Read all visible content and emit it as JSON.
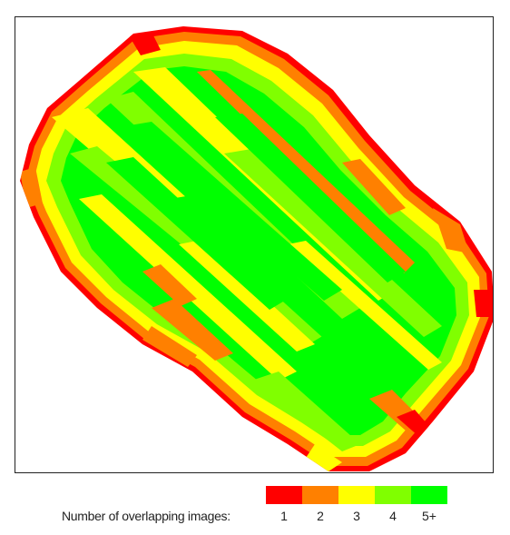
{
  "map": {
    "colors": {
      "c1": "#ff0000",
      "c2": "#ff8000",
      "c3": "#ffff00",
      "c4": "#80ff00",
      "c5": "#00ff00"
    }
  },
  "legend": {
    "title": "Number of overlapping images:",
    "items": [
      {
        "label": "1",
        "color": "#ff0000"
      },
      {
        "label": "2",
        "color": "#ff8000"
      },
      {
        "label": "3",
        "color": "#ffff00"
      },
      {
        "label": "4",
        "color": "#80ff00"
      },
      {
        "label": "5+",
        "color": "#00ff00"
      }
    ]
  }
}
